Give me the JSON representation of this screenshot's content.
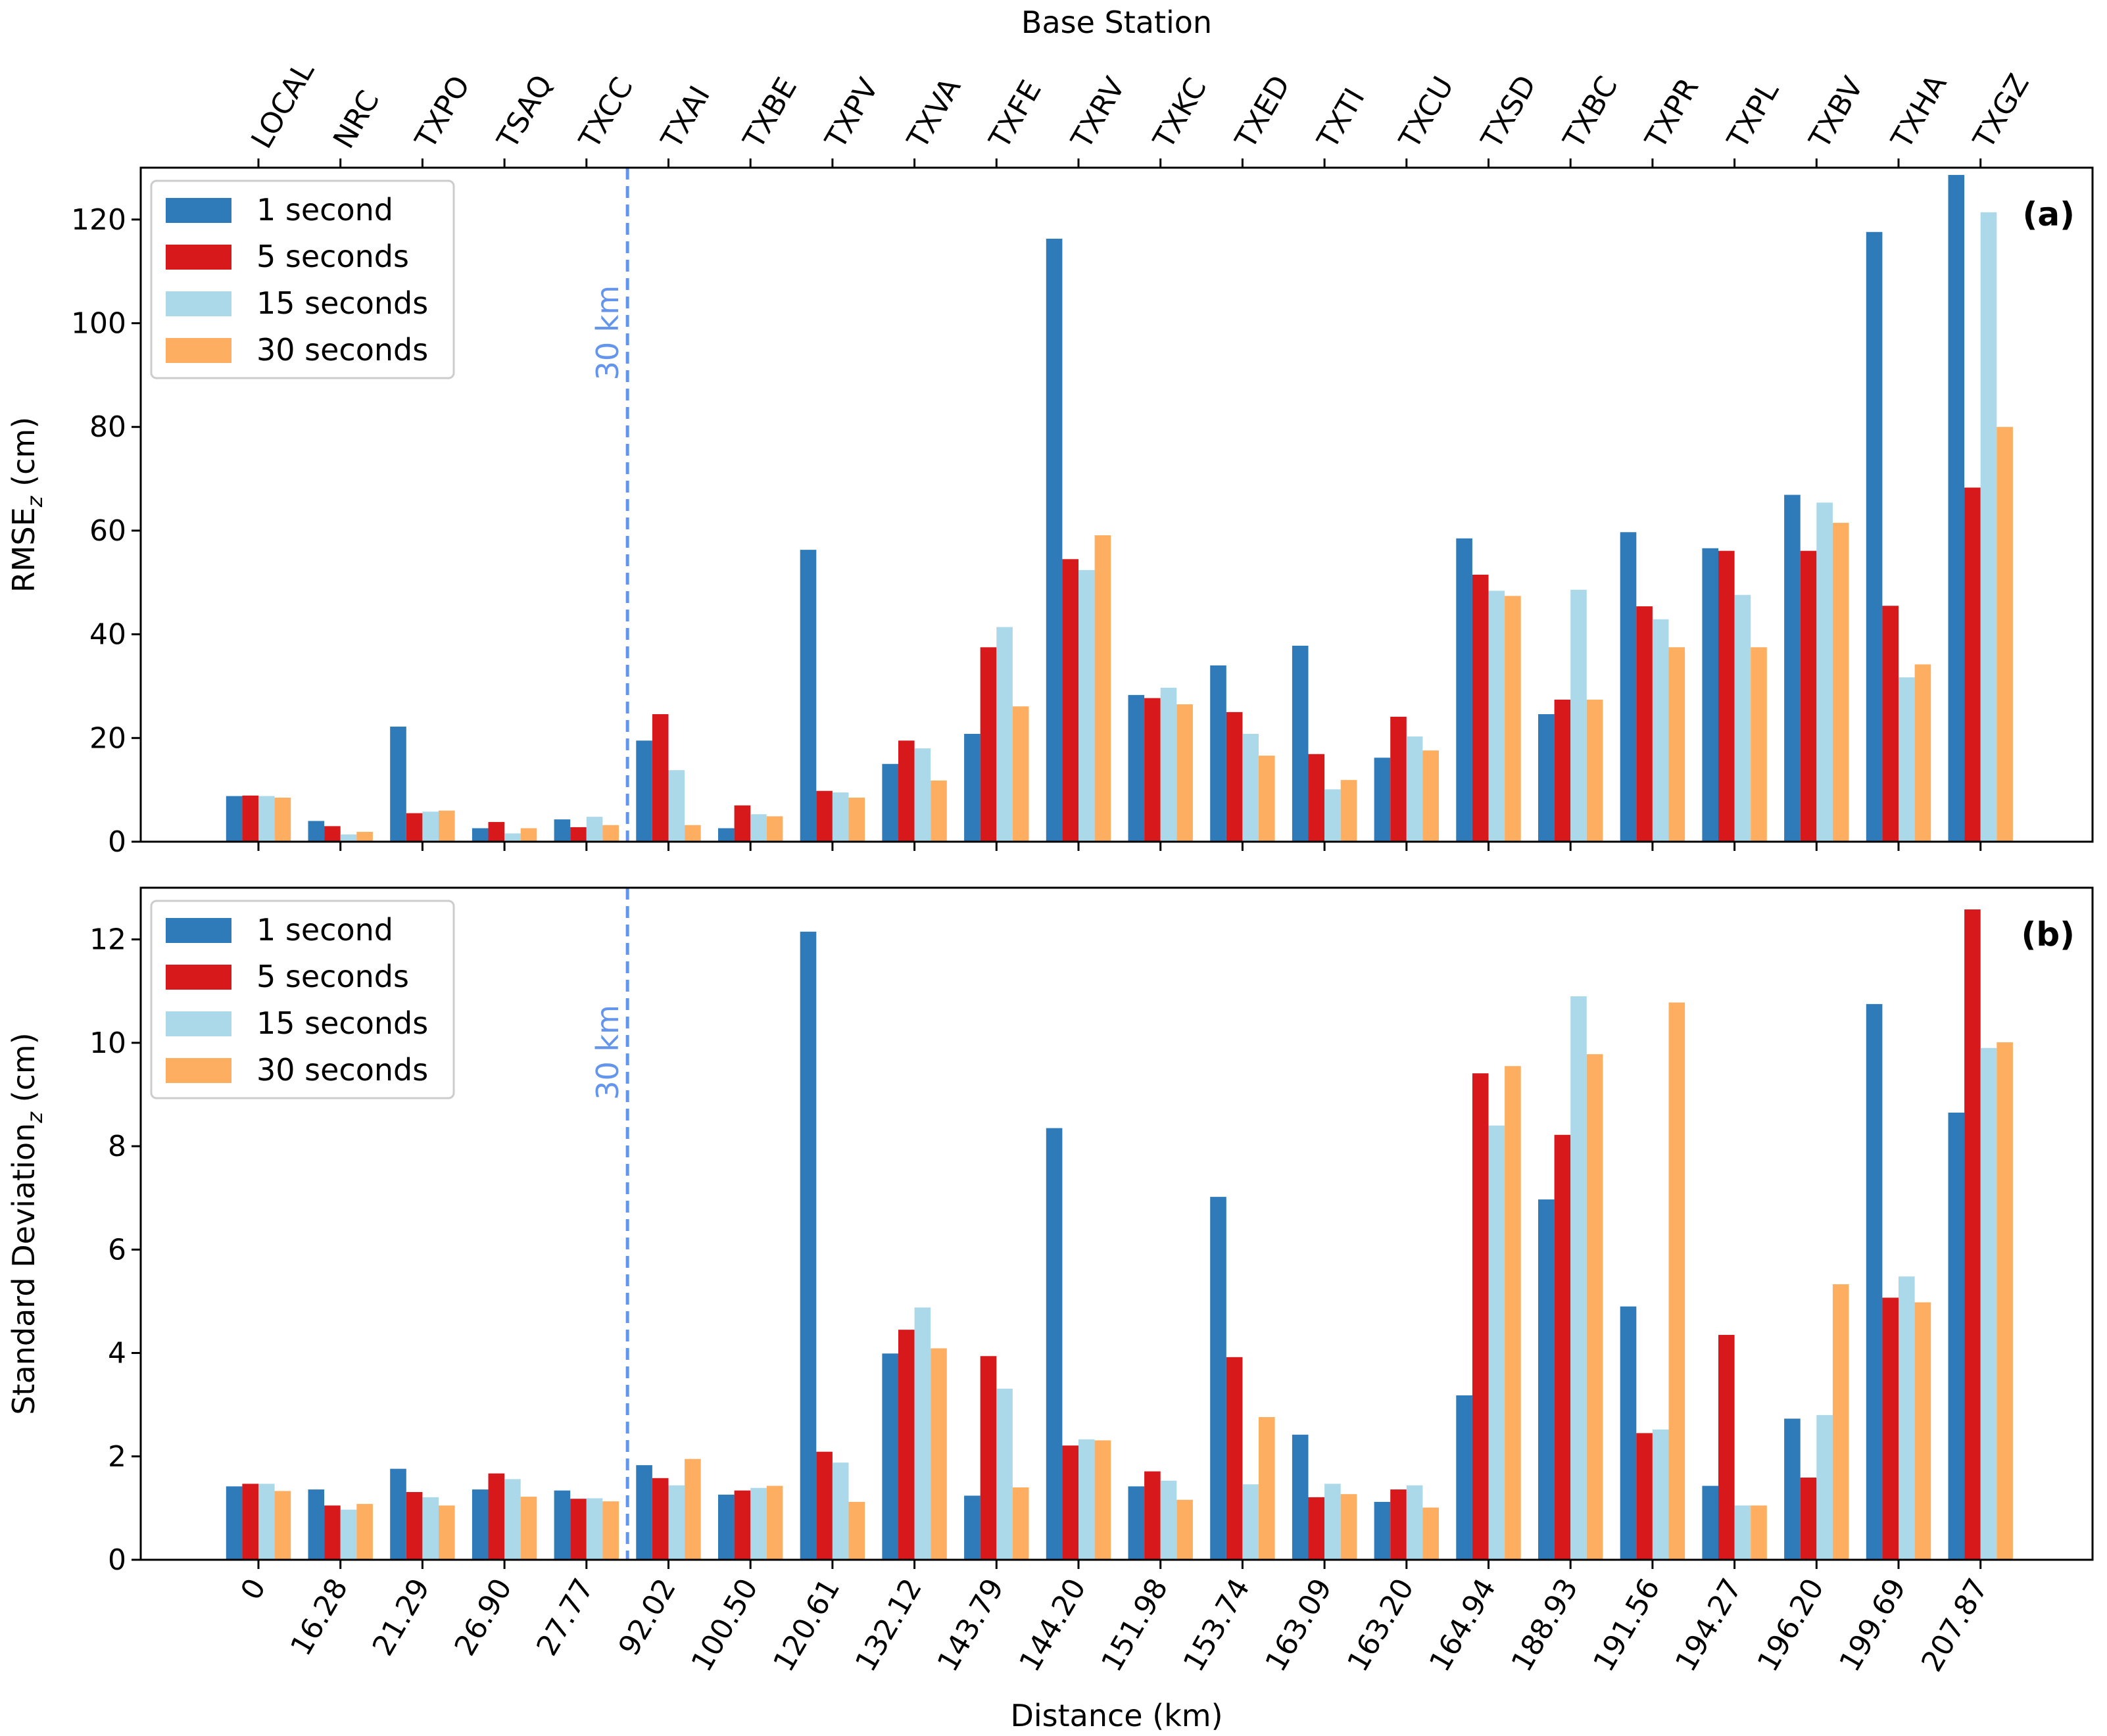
{
  "chart_data": [
    {
      "type": "bar",
      "panel_tag": "(a)",
      "ylabel_main": "RMSE",
      "ylabel_sub": "z",
      "ylabel_unit": " (cm)",
      "ylim": [
        0,
        130
      ],
      "yticks": [
        0,
        20,
        40,
        60,
        80,
        100,
        120
      ],
      "reference_line": {
        "x_index_position": 4.5,
        "label": "30 km",
        "color": "#6495ED"
      },
      "legend_position": "upper-left",
      "series": [
        {
          "name": "1 second",
          "color": "#2F7BBA",
          "values": [
            8.8,
            4.0,
            22.2,
            2.6,
            4.3,
            19.5,
            2.6,
            56.3,
            15.0,
            20.8,
            116.3,
            28.3,
            34.0,
            37.8,
            16.2,
            58.5,
            24.6,
            59.7,
            56.6,
            66.9,
            117.6,
            128.6
          ]
        },
        {
          "name": "5 seconds",
          "color": "#D7191C",
          "values": [
            8.9,
            3.0,
            5.5,
            3.8,
            2.8,
            24.6,
            7.0,
            9.8,
            19.5,
            37.5,
            54.5,
            27.7,
            25.0,
            16.9,
            24.1,
            51.5,
            27.4,
            45.4,
            56.1,
            56.1,
            45.5,
            68.3
          ]
        },
        {
          "name": "15 seconds",
          "color": "#ABD9E9",
          "values": [
            8.8,
            1.4,
            5.8,
            1.6,
            4.8,
            13.8,
            5.3,
            9.5,
            18.0,
            41.4,
            52.4,
            29.7,
            20.8,
            10.1,
            20.3,
            48.4,
            48.6,
            42.9,
            47.6,
            65.4,
            31.7,
            121.4
          ]
        },
        {
          "name": "30 seconds",
          "color": "#FDAE61",
          "values": [
            8.5,
            1.9,
            6.0,
            2.6,
            3.2,
            3.2,
            4.9,
            8.5,
            11.8,
            26.1,
            59.1,
            26.5,
            16.6,
            11.9,
            17.6,
            47.4,
            27.4,
            37.5,
            37.5,
            61.5,
            34.2,
            80.0
          ]
        }
      ]
    },
    {
      "type": "bar",
      "panel_tag": "(b)",
      "ylabel_main": "Standard Deviation",
      "ylabel_sub": "z",
      "ylabel_unit": " (cm)",
      "ylim": [
        0,
        13
      ],
      "yticks": [
        0,
        2,
        4,
        6,
        8,
        10,
        12
      ],
      "xlabel": "Distance (km)",
      "reference_line": {
        "x_index_position": 4.5,
        "label": "30 km",
        "color": "#6495ED"
      },
      "legend_position": "upper-left",
      "series": [
        {
          "name": "1 second",
          "color": "#2F7BBA",
          "values": [
            1.42,
            1.36,
            1.76,
            1.36,
            1.34,
            1.83,
            1.26,
            12.15,
            3.99,
            1.24,
            8.35,
            1.42,
            7.02,
            2.42,
            1.12,
            3.18,
            6.97,
            4.9,
            1.43,
            2.73,
            10.75,
            8.65
          ]
        },
        {
          "name": "5 seconds",
          "color": "#D7191C",
          "values": [
            1.47,
            1.05,
            1.31,
            1.67,
            1.18,
            1.58,
            1.34,
            2.09,
            4.45,
            3.94,
            2.21,
            1.71,
            3.92,
            1.21,
            1.36,
            9.41,
            8.22,
            2.45,
            4.35,
            1.59,
            5.07,
            12.58
          ]
        },
        {
          "name": "15 seconds",
          "color": "#ABD9E9",
          "values": [
            1.47,
            0.97,
            1.21,
            1.56,
            1.19,
            1.44,
            1.39,
            1.88,
            4.88,
            3.31,
            2.33,
            1.53,
            1.46,
            1.47,
            1.44,
            8.4,
            10.9,
            2.52,
            1.05,
            2.8,
            5.48,
            9.9
          ]
        },
        {
          "name": "30 seconds",
          "color": "#FDAE61",
          "values": [
            1.33,
            1.08,
            1.05,
            1.22,
            1.13,
            1.95,
            1.43,
            1.12,
            4.09,
            1.4,
            2.31,
            1.16,
            2.76,
            1.27,
            1.01,
            9.55,
            9.78,
            10.78,
            1.05,
            5.33,
            4.98,
            10.01
          ]
        }
      ]
    }
  ],
  "top_axis": {
    "label": "Base Station",
    "stations": [
      "LOCAL",
      "NRC",
      "TXPO",
      "TSAQ",
      "TXCC",
      "TXAI",
      "TXBE",
      "TXPV",
      "TXVA",
      "TXFE",
      "TXRV",
      "TXKC",
      "TXED",
      "TXTI",
      "TXCU",
      "TXSD",
      "TXBC",
      "TXPR",
      "TXPL",
      "TXBV",
      "TXHA",
      "TXGZ"
    ]
  },
  "bottom_axis": {
    "label": "Distance (km)",
    "distances": [
      "0",
      "16.28",
      "21.29",
      "26.90",
      "27.77",
      "92.02",
      "100.50",
      "120.61",
      "132.12",
      "143.79",
      "144.20",
      "151.98",
      "153.74",
      "163.09",
      "163.20",
      "164.94",
      "188.93",
      "191.56",
      "194.27",
      "196.20",
      "199.69",
      "207.87"
    ]
  }
}
